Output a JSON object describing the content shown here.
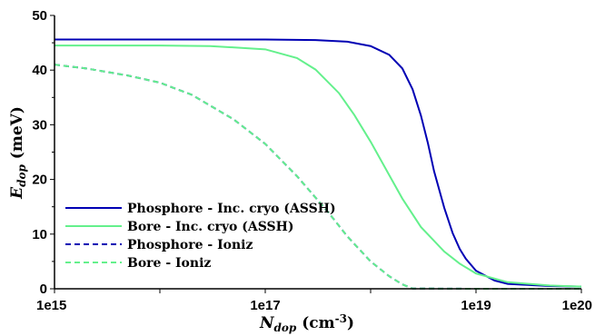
{
  "chart_data": {
    "type": "line",
    "xlabel": {
      "main": "N",
      "sub": "dop",
      "unit": " (cm",
      "sup": "-3",
      "close": ")"
    },
    "ylabel": {
      "main": "E",
      "sub": "dop",
      "unit": " (meV)"
    },
    "xscale": "log",
    "xlim": [
      1000000000000000.0,
      1e+20
    ],
    "ylim": [
      0,
      50
    ],
    "x_ticks": [
      {
        "value": 1000000000000000.0,
        "label": "1e15"
      },
      {
        "value": 1e+17,
        "label": "1e17"
      },
      {
        "value": 1e+19,
        "label": "1e19"
      },
      {
        "value": 1e+20,
        "label": "1e20"
      }
    ],
    "y_ticks": [
      0,
      10,
      20,
      30,
      40,
      50
    ],
    "grid": false,
    "legend_position": "bottom-left",
    "series": [
      {
        "name": "Phosphore - Inc. cryo (ASSH)",
        "color": "#0000b4",
        "dash": "solid",
        "points": [
          [
            1000000000000000.0,
            45.6
          ],
          [
            1e+16,
            45.6
          ],
          [
            1e+17,
            45.6
          ],
          [
            3e+17,
            45.5
          ],
          [
            6e+17,
            45.2
          ],
          [
            1e+18,
            44.4
          ],
          [
            1.5e+18,
            42.8
          ],
          [
            2e+18,
            40.3
          ],
          [
            2.5e+18,
            36.5
          ],
          [
            3e+18,
            31.7
          ],
          [
            3.5e+18,
            26.6
          ],
          [
            4e+18,
            21.5
          ],
          [
            5e+18,
            14.8
          ],
          [
            6e+18,
            10.2
          ],
          [
            7e+18,
            7.3
          ],
          [
            8e+18,
            5.5
          ],
          [
            1e+19,
            3.3
          ],
          [
            1.5e+19,
            1.5
          ],
          [
            2e+19,
            0.9
          ],
          [
            5e+19,
            0.5
          ],
          [
            1e+20,
            0.4
          ]
        ]
      },
      {
        "name": "Bore - Inc. cryo (ASSH)",
        "color": "#64f08c",
        "dash": "solid",
        "points": [
          [
            1000000000000000.0,
            44.5
          ],
          [
            1e+16,
            44.5
          ],
          [
            3e+16,
            44.4
          ],
          [
            1e+17,
            43.8
          ],
          [
            2e+17,
            42.2
          ],
          [
            3e+17,
            40.1
          ],
          [
            5e+17,
            35.8
          ],
          [
            7e+17,
            31.8
          ],
          [
            1e+18,
            26.9
          ],
          [
            1.5e+18,
            20.8
          ],
          [
            2e+18,
            16.5
          ],
          [
            3e+18,
            11.3
          ],
          [
            5e+18,
            6.8
          ],
          [
            7e+18,
            4.6
          ],
          [
            1e+19,
            2.8
          ],
          [
            2e+19,
            1.2
          ],
          [
            5e+19,
            0.6
          ],
          [
            1e+20,
            0.4
          ]
        ]
      },
      {
        "name": "Phosphore - Ioniz",
        "color": "#0000b4",
        "dash": "dashed",
        "points": [
          [
            1000000000000000.0,
            41.0
          ],
          [
            2000000000000000.0,
            40.3
          ],
          [
            5000000000000000.0,
            39.0
          ],
          [
            1e+16,
            37.7
          ],
          [
            2e+16,
            35.5
          ],
          [
            5e+16,
            31.0
          ],
          [
            1e+17,
            26.5
          ],
          [
            2e+17,
            20.6
          ],
          [
            4e+17,
            13.9
          ],
          [
            6e+17,
            9.6
          ],
          [
            1e+18,
            5.0
          ],
          [
            1.5e+18,
            2.3
          ],
          [
            2e+18,
            0.8
          ],
          [
            2.5e+18,
            0.05
          ],
          [
            1e+19,
            0
          ],
          [
            1e+20,
            0
          ]
        ]
      },
      {
        "name": "Bore - Ioniz",
        "color": "#64f08c",
        "dash": "dashed",
        "points": [
          [
            1000000000000000.0,
            41.0
          ],
          [
            2000000000000000.0,
            40.3
          ],
          [
            5000000000000000.0,
            39.0
          ],
          [
            1e+16,
            37.7
          ],
          [
            2e+16,
            35.5
          ],
          [
            5e+16,
            31.0
          ],
          [
            1e+17,
            26.5
          ],
          [
            2e+17,
            20.6
          ],
          [
            4e+17,
            13.9
          ],
          [
            6e+17,
            9.6
          ],
          [
            1e+18,
            5.0
          ],
          [
            1.5e+18,
            2.3
          ],
          [
            2e+18,
            0.8
          ],
          [
            2.5e+18,
            0.05
          ],
          [
            1e+19,
            0
          ],
          [
            1e+20,
            0
          ]
        ]
      }
    ]
  }
}
